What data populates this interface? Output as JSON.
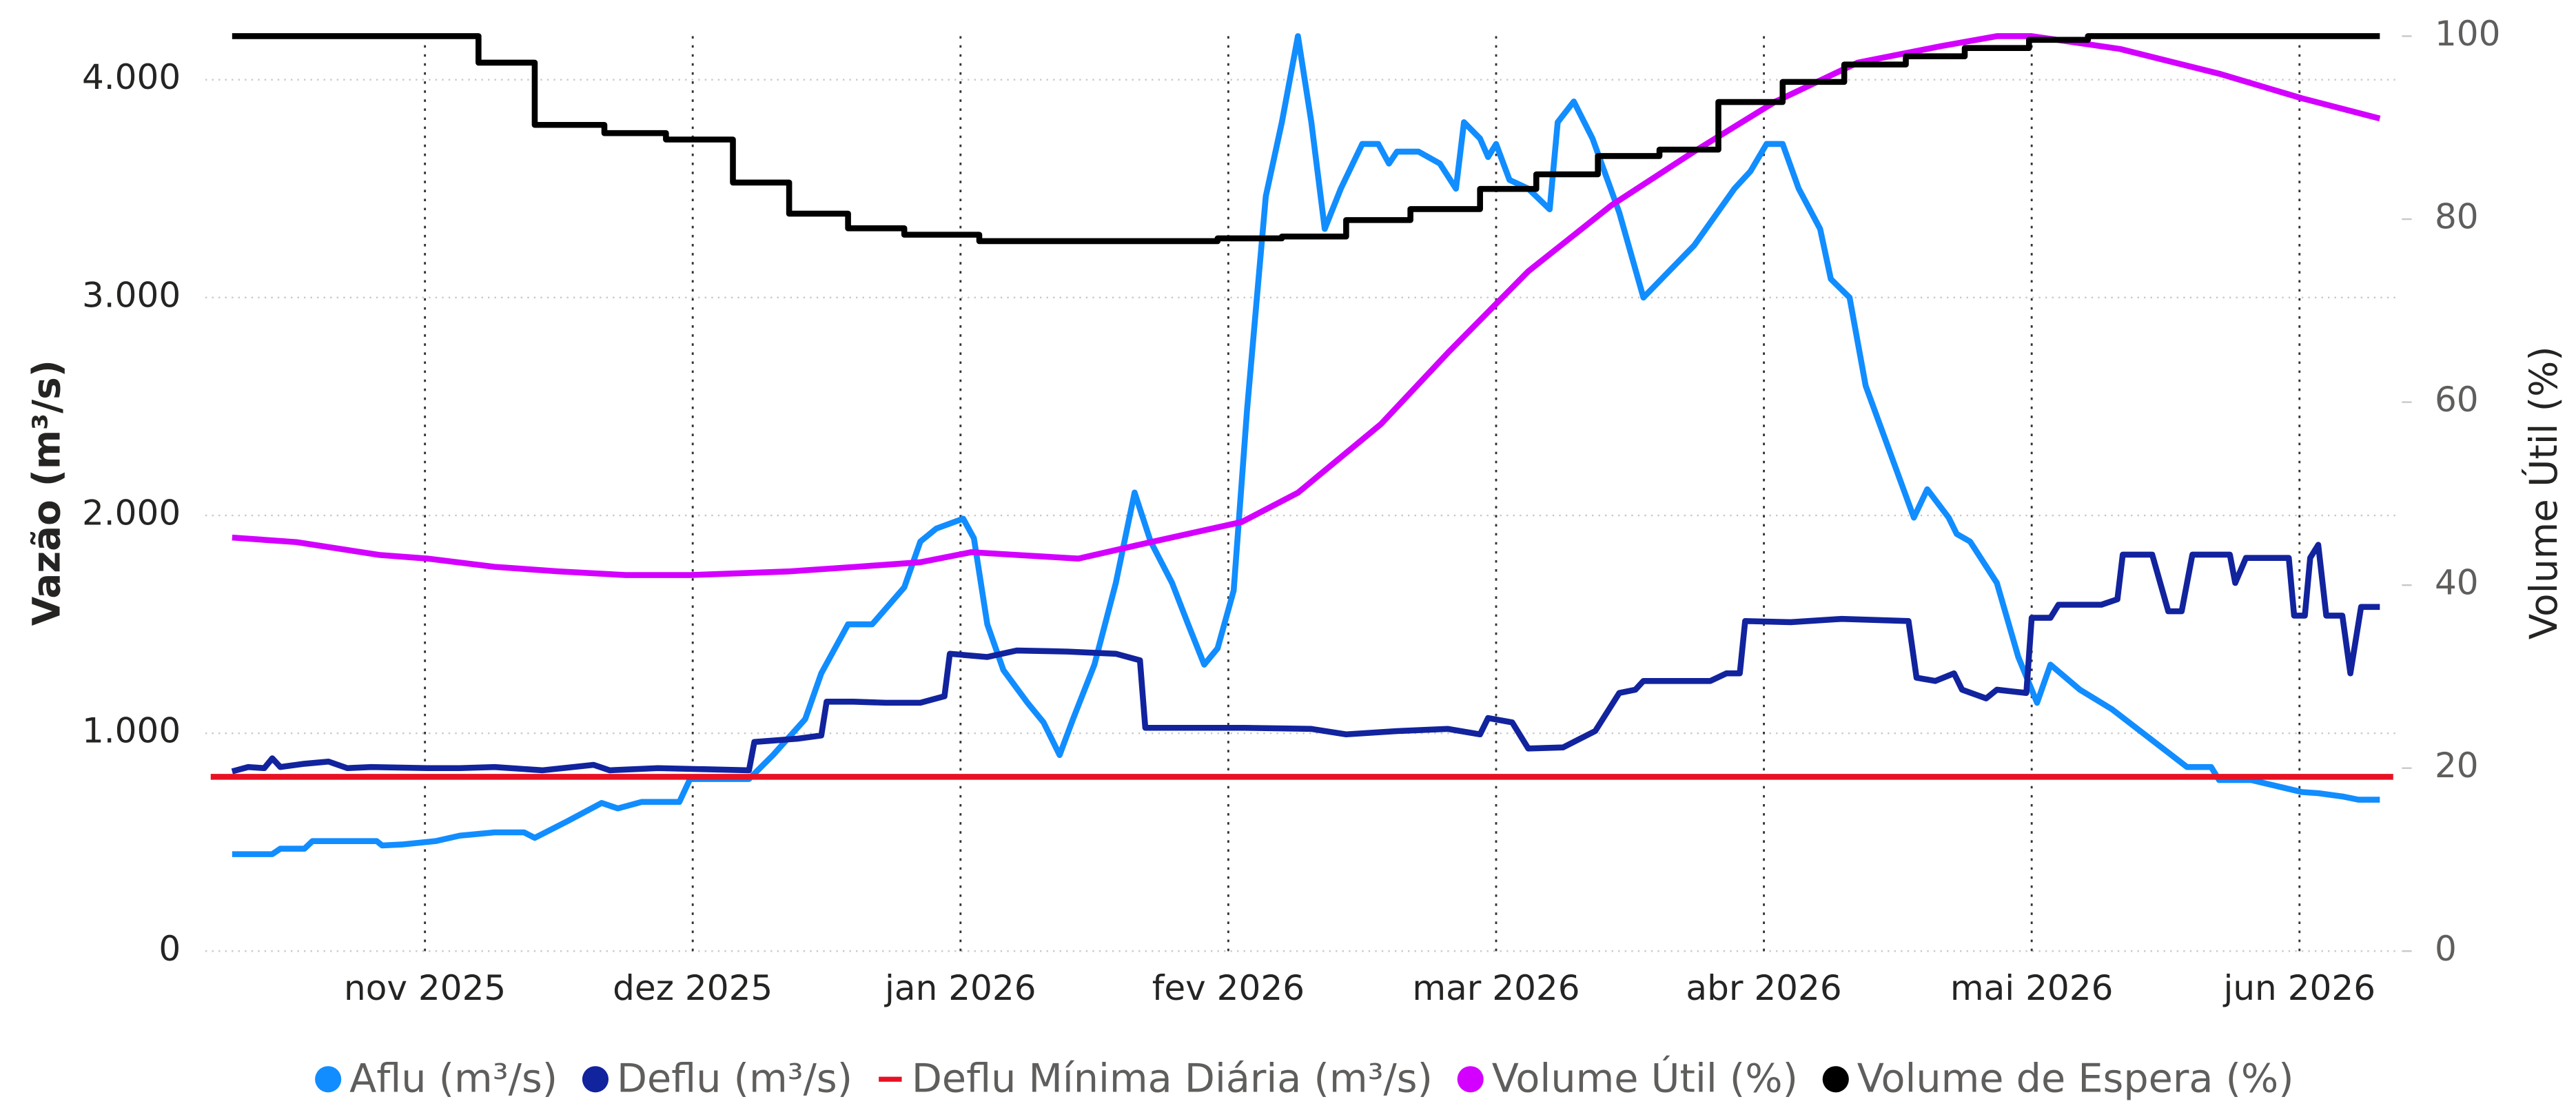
{
  "chart_data": {
    "type": "line",
    "ylabel": "Vazão (m³/s)",
    "y2label": "Volume Útil (%)",
    "xlim": [
      10.18,
      18.37
    ],
    "xticks": [
      {
        "value": 11,
        "label": "nov 2025"
      },
      {
        "value": 12,
        "label": "dez 2025"
      },
      {
        "value": 13,
        "label": "jan 2026"
      },
      {
        "value": 14,
        "label": "fev 2026"
      },
      {
        "value": 15,
        "label": "mar 2026"
      },
      {
        "value": 16,
        "label": "abr 2026"
      },
      {
        "value": 17,
        "label": "mai 2026"
      },
      {
        "value": 18,
        "label": "jun 2026"
      }
    ],
    "ylim": [
      0,
      4200
    ],
    "yticks": [
      0,
      {
        "value": 1000,
        "label": "1.000"
      },
      {
        "value": 2000,
        "label": "2.000"
      },
      {
        "value": 3000,
        "label": "3.000"
      },
      {
        "value": 4000,
        "label": "4.000"
      }
    ],
    "y2lim": [
      0,
      100
    ],
    "y2ticks": [
      0,
      20,
      40,
      60,
      80,
      100
    ],
    "grid": true,
    "legend": "bottom",
    "series": [
      {
        "name": "Aflu (m³/s)",
        "color": "#118dff",
        "legend_marker": "circle",
        "x": [
          10.28,
          10.43,
          10.46,
          10.55,
          10.58,
          10.82,
          10.84,
          10.92,
          11.04,
          11.13,
          11.26,
          11.37,
          11.41,
          11.53,
          11.66,
          11.72,
          11.81,
          11.95,
          11.99,
          12.21,
          12.3,
          12.42,
          12.48,
          12.58,
          12.67,
          12.79,
          12.85,
          12.91,
          13.01,
          13.05,
          13.1,
          13.16,
          13.25,
          13.31,
          13.37,
          13.42,
          13.5,
          13.58,
          13.65,
          13.71,
          13.79,
          13.85,
          13.91,
          13.96,
          14.02,
          14.07,
          14.14,
          14.2,
          14.26,
          14.31,
          14.36,
          14.42,
          14.5,
          14.56,
          14.6,
          14.63,
          14.71,
          14.79,
          14.85,
          14.88,
          14.94,
          14.97,
          15.0,
          15.05,
          15.12,
          15.2,
          15.23,
          15.29,
          15.36,
          15.46,
          15.55,
          15.74,
          15.89,
          15.95,
          16.01,
          16.07,
          16.13,
          16.21,
          16.25,
          16.32,
          16.38,
          16.56,
          16.61,
          16.69,
          16.72,
          16.77,
          16.87,
          16.95,
          17.02,
          17.07,
          17.18,
          17.3,
          17.58,
          17.67,
          17.7,
          17.82,
          18.01,
          18.07,
          18.16,
          18.22,
          18.3
        ],
        "values": [
          445,
          445,
          470,
          470,
          505,
          505,
          485,
          490,
          505,
          530,
          545,
          545,
          520,
          595,
          680,
          655,
          685,
          685,
          790,
          790,
          900,
          1065,
          1275,
          1500,
          1500,
          1670,
          1880,
          1940,
          1985,
          1895,
          1500,
          1290,
          1140,
          1050,
          900,
          1065,
          1315,
          1690,
          2105,
          1880,
          1690,
          1500,
          1315,
          1390,
          1655,
          2485,
          3465,
          3805,
          4200,
          3805,
          3315,
          3500,
          3705,
          3705,
          3615,
          3670,
          3670,
          3615,
          3500,
          3805,
          3730,
          3645,
          3705,
          3540,
          3500,
          3405,
          3805,
          3900,
          3730,
          3390,
          3000,
          3240,
          3500,
          3580,
          3705,
          3705,
          3500,
          3315,
          3085,
          3000,
          2595,
          1990,
          2120,
          1990,
          1915,
          1880,
          1690,
          1350,
          1140,
          1315,
          1200,
          1110,
          845,
          845,
          785,
          785,
          730,
          725,
          710,
          695,
          695
        ]
      },
      {
        "name": "Deflu (m³/s)",
        "color": "#12239e",
        "legend_marker": "circle",
        "x": [
          10.28,
          10.34,
          10.4,
          10.43,
          10.46,
          10.55,
          10.64,
          10.71,
          10.8,
          11.01,
          11.13,
          11.26,
          11.44,
          11.63,
          11.69,
          11.87,
          12.21,
          12.23,
          12.39,
          12.48,
          12.5,
          12.6,
          12.72,
          12.85,
          12.94,
          12.96,
          13.1,
          13.21,
          13.4,
          13.58,
          13.67,
          13.69,
          13.96,
          14.06,
          14.31,
          14.44,
          14.63,
          14.82,
          14.94,
          14.97,
          15.06,
          15.12,
          15.25,
          15.37,
          15.46,
          15.52,
          15.55,
          15.8,
          15.86,
          15.91,
          15.93,
          16.1,
          16.29,
          16.54,
          16.57,
          16.64,
          16.71,
          16.74,
          16.83,
          16.87,
          16.98,
          17.0,
          17.07,
          17.1,
          17.26,
          17.32,
          17.34,
          17.45,
          17.51,
          17.56,
          17.6,
          17.74,
          17.76,
          17.8,
          17.96,
          17.98,
          18.02,
          18.04,
          18.07,
          18.1,
          18.16,
          18.19,
          18.23,
          18.3
        ],
        "values": [
          825,
          845,
          840,
          885,
          845,
          860,
          870,
          840,
          845,
          840,
          840,
          845,
          830,
          855,
          830,
          840,
          830,
          960,
          975,
          990,
          1145,
          1145,
          1140,
          1140,
          1170,
          1365,
          1350,
          1380,
          1375,
          1365,
          1335,
          1025,
          1025,
          1025,
          1020,
          995,
          1010,
          1020,
          995,
          1070,
          1050,
          930,
          935,
          1010,
          1185,
          1200,
          1240,
          1240,
          1275,
          1275,
          1515,
          1510,
          1525,
          1515,
          1255,
          1240,
          1275,
          1200,
          1160,
          1200,
          1185,
          1530,
          1530,
          1590,
          1590,
          1615,
          1820,
          1820,
          1560,
          1560,
          1820,
          1820,
          1690,
          1805,
          1805,
          1540,
          1540,
          1805,
          1865,
          1540,
          1540,
          1275,
          1580,
          1580
        ]
      },
      {
        "name": "Deflu Mínima Diária (m³/s)",
        "color": "#e81123",
        "legend_marker": "dash",
        "x": [
          10.2,
          18.35
        ],
        "values": [
          800,
          800
        ]
      },
      {
        "name": "Volume Útil (%)",
        "color": "#d400ff",
        "legend_marker": "circle",
        "axis": "y2",
        "x": [
          10.28,
          10.52,
          10.83,
          11.01,
          11.26,
          11.5,
          11.75,
          11.99,
          12.36,
          12.61,
          12.85,
          13.04,
          13.21,
          13.44,
          13.71,
          14.05,
          14.26,
          14.57,
          14.82,
          15.12,
          15.43,
          15.74,
          16.04,
          16.35,
          16.66,
          16.87,
          17.0,
          17.33,
          17.7,
          18.01,
          18.3
        ],
        "values": [
          45.2,
          44.7,
          43.3,
          42.9,
          42.0,
          41.5,
          41.1,
          41.1,
          41.5,
          42.0,
          42.5,
          43.6,
          43.3,
          42.9,
          44.7,
          46.9,
          50.1,
          57.6,
          65.4,
          74.3,
          81.5,
          87.4,
          92.8,
          97.1,
          98.9,
          100,
          100,
          98.6,
          95.9,
          93.2,
          91.0
        ]
      },
      {
        "name": "Volume de Espera (%)",
        "color": "#000000",
        "legend_marker": "circle",
        "axis": "y2",
        "x": [
          10.28,
          11.2,
          11.2,
          11.41,
          11.41,
          11.67,
          11.67,
          11.9,
          11.9,
          12.15,
          12.15,
          12.36,
          12.36,
          12.58,
          12.58,
          12.79,
          12.79,
          13.07,
          13.07,
          13.96,
          13.96,
          14.2,
          14.2,
          14.44,
          14.44,
          14.68,
          14.68,
          14.94,
          14.94,
          15.15,
          15.15,
          15.38,
          15.38,
          15.61,
          15.61,
          15.83,
          15.83,
          16.07,
          16.07,
          16.3,
          16.3,
          16.53,
          16.53,
          16.75,
          16.75,
          16.99,
          16.99,
          17.21,
          17.21,
          18.3
        ],
        "values": [
          100,
          100,
          97.1,
          97.1,
          90.3,
          90.3,
          89.4,
          89.4,
          88.7,
          88.7,
          84.0,
          84.0,
          80.6,
          80.6,
          79.0,
          79.0,
          78.3,
          78.3,
          77.6,
          77.6,
          77.9,
          77.9,
          78.1,
          78.1,
          79.9,
          79.9,
          81.1,
          81.1,
          83.3,
          83.3,
          84.9,
          84.9,
          86.9,
          86.9,
          87.6,
          87.6,
          92.8,
          92.8,
          95.0,
          95.0,
          96.9,
          96.9,
          97.8,
          97.8,
          98.7,
          98.7,
          99.6,
          99.6,
          100,
          100
        ]
      }
    ]
  }
}
